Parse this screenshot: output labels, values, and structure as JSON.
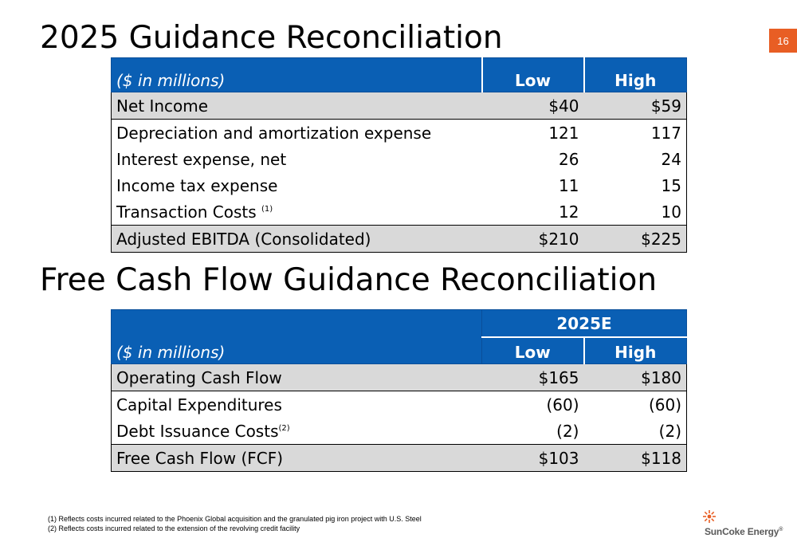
{
  "page": {
    "number": "16"
  },
  "ebitda": {
    "title": "2025 Guidance Reconciliation",
    "header": {
      "label": "($ in millions)",
      "low": "Low",
      "high": "High"
    },
    "rows": [
      {
        "label": "Net Income",
        "low": "$40",
        "high": "$59"
      },
      {
        "label": "Depreciation and amortization expense",
        "low": "121",
        "high": "117"
      },
      {
        "label": "Interest expense, net",
        "low": "26",
        "high": "24"
      },
      {
        "label": "Income tax expense",
        "low": "11",
        "high": "15"
      },
      {
        "label": "Transaction Costs",
        "note": "(1)",
        "low": "12",
        "high": "10"
      },
      {
        "label": "Adjusted EBITDA (Consolidated)",
        "low": "$210",
        "high": "$225"
      }
    ]
  },
  "fcf": {
    "title": "Free Cash Flow Guidance Reconciliation",
    "header": {
      "label": "($ in millions)",
      "period": "2025E",
      "low": "Low",
      "high": "High"
    },
    "rows": [
      {
        "label": "Operating Cash Flow",
        "low": "$165",
        "high": "$180"
      },
      {
        "label": "Capital Expenditures",
        "low": "(60)",
        "high": "(60)"
      },
      {
        "label": "Debt Issuance Costs",
        "note": "(2)",
        "low": "(2)",
        "high": "(2)"
      },
      {
        "label": "Free Cash Flow (FCF)",
        "low": "$103",
        "high": "$118"
      }
    ]
  },
  "footnotes": [
    "(1)  Reflects costs incurred related to the Phoenix Global acquisition and the granulated pig iron project with U.S. Steel",
    "(2)  Reflects costs incurred related to the extension of the revolving credit facility"
  ],
  "logo": {
    "text": "SunCoke Energy",
    "mark": "®",
    "icon": "sun-icon",
    "color": "#e85e24"
  },
  "colors": {
    "header_blue": "#0a5fb4",
    "row_shade": "#d9d9d9",
    "badge_orange": "#e85e24"
  }
}
